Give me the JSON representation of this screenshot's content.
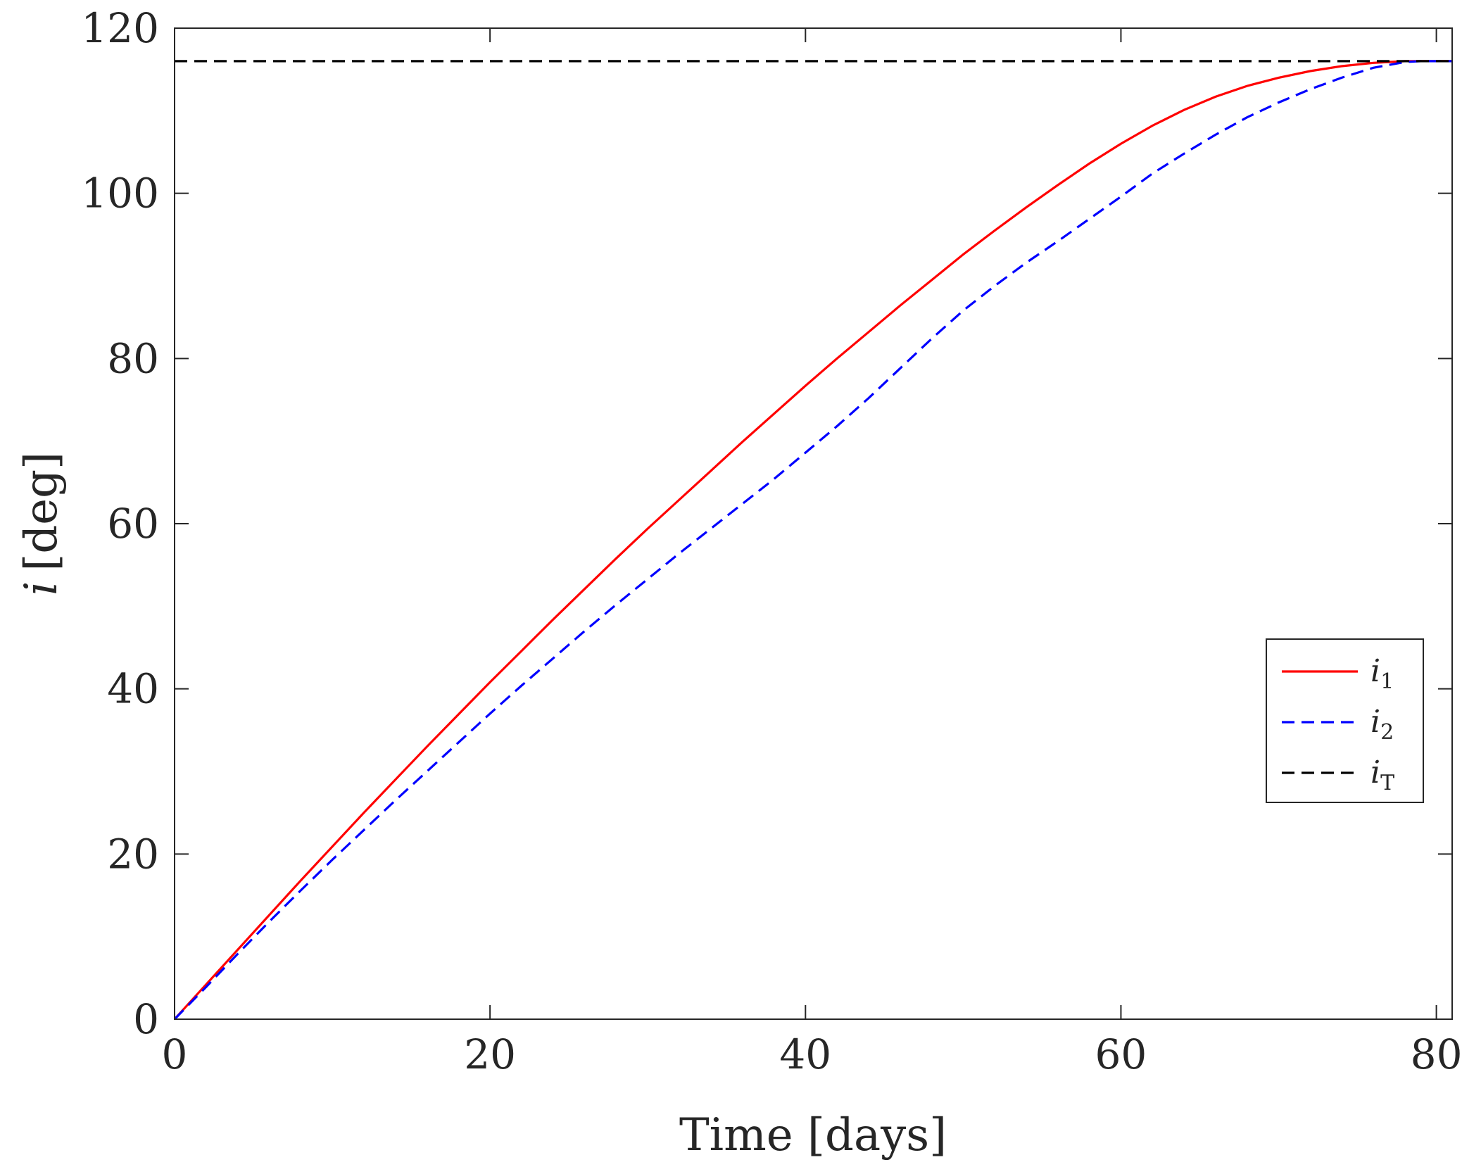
{
  "chart_data": {
    "type": "line",
    "xlabel": "Time [days]",
    "ylabel_var": "i",
    "ylabel_unit": "[deg]",
    "xlim": [
      0,
      81
    ],
    "ylim": [
      0,
      120
    ],
    "xticks": [
      0,
      20,
      40,
      60,
      80
    ],
    "yticks": [
      0,
      20,
      40,
      60,
      80,
      100,
      120
    ],
    "xtick_labels": [
      "0",
      "20",
      "40",
      "60",
      "80"
    ],
    "ytick_labels": [
      "0",
      "20",
      "40",
      "60",
      "80",
      "100",
      "120"
    ],
    "grid": false,
    "legend_position": "center-right",
    "series": [
      {
        "name": "i",
        "sub": "1",
        "color": "#ff0000",
        "style": "solid",
        "x": [
          0,
          2,
          4,
          6,
          8,
          10,
          12,
          14,
          16,
          18,
          20,
          22,
          24,
          26,
          28,
          30,
          32,
          34,
          36,
          38,
          40,
          42,
          44,
          46,
          48,
          50,
          52,
          54,
          56,
          58,
          60,
          62,
          64,
          66,
          68,
          70,
          72,
          74,
          76,
          78,
          79,
          80,
          81
        ],
        "y": [
          0,
          4.2,
          8.4,
          12.6,
          16.8,
          20.9,
          25.0,
          29.0,
          33.0,
          36.9,
          40.8,
          44.6,
          48.4,
          52.1,
          55.8,
          59.4,
          62.9,
          66.4,
          69.9,
          73.3,
          76.7,
          80.0,
          83.2,
          86.4,
          89.5,
          92.6,
          95.5,
          98.3,
          101.0,
          103.6,
          106.0,
          108.2,
          110.1,
          111.7,
          113.0,
          114.0,
          114.8,
          115.4,
          115.8,
          116.0,
          116.0,
          116.0,
          116.0
        ]
      },
      {
        "name": "i",
        "sub": "2",
        "color": "#0000ff",
        "style": "dashed",
        "x": [
          0,
          2,
          4,
          6,
          8,
          10,
          12,
          14,
          16,
          18,
          20,
          22,
          24,
          26,
          28,
          30,
          32,
          34,
          36,
          38,
          40,
          42,
          44,
          46,
          48,
          50,
          52,
          54,
          56,
          58,
          60,
          62,
          64,
          66,
          68,
          70,
          72,
          74,
          76,
          78,
          79,
          80,
          81
        ],
        "y": [
          0,
          3.9,
          7.9,
          11.8,
          15.6,
          19.3,
          22.9,
          26.5,
          30.0,
          33.5,
          37.0,
          40.4,
          43.7,
          47.0,
          50.2,
          53.3,
          56.4,
          59.4,
          62.4,
          65.4,
          68.6,
          71.8,
          75.2,
          78.8,
          82.4,
          85.8,
          88.8,
          91.6,
          94.2,
          96.9,
          99.6,
          102.4,
          104.8,
          107.1,
          109.2,
          111.0,
          112.6,
          114.0,
          115.2,
          115.9,
          116.0,
          116.0,
          116.0
        ]
      },
      {
        "name": "i",
        "sub": "T",
        "color": "#000000",
        "style": "dashed",
        "x": [
          0,
          81
        ],
        "y": [
          116,
          116
        ]
      }
    ]
  }
}
